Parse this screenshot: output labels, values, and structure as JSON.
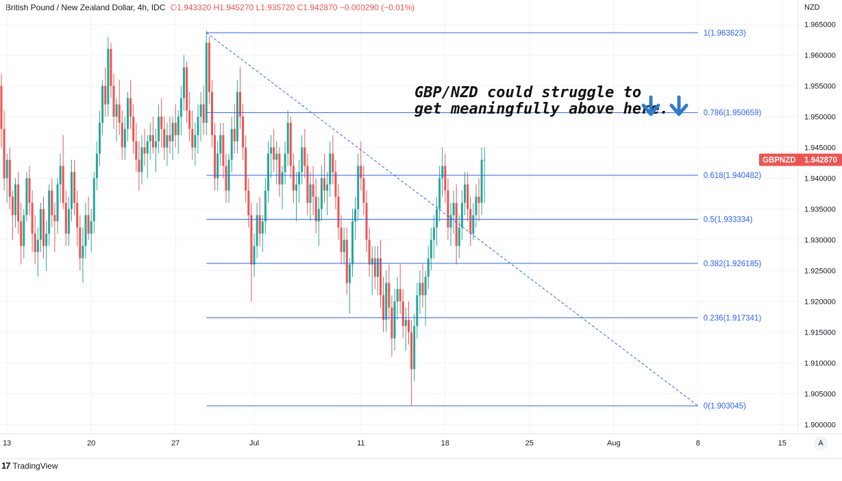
{
  "header": {
    "title": "British Pound / New Zealand Dollar, 4h, IDC",
    "open": "O1.943320",
    "high": "H1.945270",
    "low": "L1.935720",
    "close": "C1.942870",
    "change": "−0.000290 (−0.01%)"
  },
  "currency": "NZD",
  "price_tag": {
    "symbol": "GBPNZD",
    "value": "1.942870"
  },
  "annotation": {
    "line1": "GBP/NZD could struggle to",
    "line2": "get meaningfully above here."
  },
  "branding": {
    "name": "TradingView",
    "auto_button": "A"
  },
  "colors": {
    "up": "#26a69a",
    "down": "#ef5350",
    "fib": "#2962ff",
    "arrow": "#2e7bcf",
    "tag": "#ef5350"
  },
  "icons": [
    "tradingview-logo-icon",
    "arrow-down-icon"
  ],
  "chart_data": {
    "type": "candlestick",
    "symbol": "GBPNZD",
    "timeframe": "4h",
    "ylim": [
      1.8985,
      1.9685
    ],
    "y_ticks": [
      "1.965000",
      "1.960000",
      "1.955000",
      "1.950000",
      "1.945000",
      "1.940000",
      "1.935000",
      "1.930000",
      "1.925000",
      "1.920000",
      "1.915000",
      "1.910000",
      "1.905000",
      "1.900000"
    ],
    "y_tick_values": [
      1.965,
      1.96,
      1.955,
      1.95,
      1.945,
      1.94,
      1.935,
      1.93,
      1.925,
      1.92,
      1.915,
      1.91,
      1.905,
      1.9
    ],
    "x_ticks": [
      "13",
      "20",
      "27",
      "Jul",
      "11",
      "18",
      "25",
      "Aug",
      "8",
      "15"
    ],
    "x_tick_index": [
      2,
      32,
      62,
      90,
      128,
      158,
      188,
      218,
      248,
      278
    ],
    "fib_levels": [
      {
        "label": "1(1.963623)",
        "value": 1.963623
      },
      {
        "label": "0.786(1.950659)",
        "value": 1.950659
      },
      {
        "label": "0.618(1.940482)",
        "value": 1.940482
      },
      {
        "label": "0.5(1.933334)",
        "value": 1.933334
      },
      {
        "label": "0.382(1.926185)",
        "value": 1.926185
      },
      {
        "label": "0.236(1.917341)",
        "value": 1.917341
      },
      {
        "label": "0(1.903045)",
        "value": 1.903045
      }
    ],
    "fib_range_index": [
      73,
      248
    ],
    "trend_line": {
      "start_index": 73,
      "start_value": 1.963623,
      "end_index": 248,
      "end_value": 1.903045
    },
    "candles": [
      [
        1.955,
        1.957,
        1.945,
        1.948
      ],
      [
        1.948,
        1.951,
        1.938,
        1.94
      ],
      [
        1.94,
        1.944,
        1.936,
        1.943
      ],
      [
        1.943,
        1.945,
        1.935,
        1.937
      ],
      [
        1.937,
        1.938,
        1.93,
        1.934
      ],
      [
        1.934,
        1.94,
        1.932,
        1.939
      ],
      [
        1.939,
        1.941,
        1.931,
        1.933
      ],
      [
        1.933,
        1.936,
        1.926,
        1.929
      ],
      [
        1.929,
        1.935,
        1.927,
        1.934
      ],
      [
        1.934,
        1.941,
        1.933,
        1.94
      ],
      [
        1.94,
        1.942,
        1.934,
        1.936
      ],
      [
        1.936,
        1.938,
        1.928,
        1.931
      ],
      [
        1.931,
        1.934,
        1.926,
        1.928
      ],
      [
        1.928,
        1.932,
        1.924,
        1.93
      ],
      [
        1.93,
        1.936,
        1.928,
        1.935
      ],
      [
        1.935,
        1.937,
        1.927,
        1.929
      ],
      [
        1.929,
        1.933,
        1.925,
        1.931
      ],
      [
        1.931,
        1.939,
        1.929,
        1.938
      ],
      [
        1.938,
        1.94,
        1.932,
        1.934
      ],
      [
        1.934,
        1.936,
        1.928,
        1.933
      ],
      [
        1.933,
        1.94,
        1.931,
        1.939
      ],
      [
        1.939,
        1.944,
        1.936,
        1.942
      ],
      [
        1.942,
        1.947,
        1.935,
        1.936
      ],
      [
        1.936,
        1.938,
        1.929,
        1.931
      ],
      [
        1.931,
        1.937,
        1.929,
        1.935
      ],
      [
        1.935,
        1.943,
        1.933,
        1.941
      ],
      [
        1.941,
        1.943,
        1.934,
        1.936
      ],
      [
        1.936,
        1.938,
        1.929,
        1.932
      ],
      [
        1.932,
        1.934,
        1.925,
        1.927
      ],
      [
        1.927,
        1.932,
        1.923,
        1.929
      ],
      [
        1.929,
        1.936,
        1.927,
        1.934
      ],
      [
        1.934,
        1.937,
        1.93,
        1.931
      ],
      [
        1.931,
        1.935,
        1.928,
        1.933
      ],
      [
        1.933,
        1.941,
        1.931,
        1.94
      ],
      [
        1.94,
        1.946,
        1.938,
        1.944
      ],
      [
        1.944,
        1.951,
        1.942,
        1.949
      ],
      [
        1.949,
        1.956,
        1.947,
        1.955
      ],
      [
        1.955,
        1.958,
        1.95,
        1.952
      ],
      [
        1.952,
        1.963,
        1.95,
        1.961
      ],
      [
        1.961,
        1.962,
        1.953,
        1.955
      ],
      [
        1.955,
        1.957,
        1.948,
        1.95
      ],
      [
        1.95,
        1.953,
        1.946,
        1.952
      ],
      [
        1.952,
        1.956,
        1.947,
        1.949
      ],
      [
        1.949,
        1.951,
        1.943,
        1.945
      ],
      [
        1.945,
        1.95,
        1.943,
        1.948
      ],
      [
        1.948,
        1.954,
        1.946,
        1.953
      ],
      [
        1.953,
        1.956,
        1.948,
        1.95
      ],
      [
        1.95,
        1.952,
        1.944,
        1.946
      ],
      [
        1.946,
        1.949,
        1.941,
        1.943
      ],
      [
        1.943,
        1.946,
        1.938,
        1.941
      ],
      [
        1.941,
        1.947,
        1.939,
        1.945
      ],
      [
        1.945,
        1.948,
        1.942,
        1.944
      ],
      [
        1.944,
        1.947,
        1.94,
        1.946
      ],
      [
        1.946,
        1.949,
        1.943,
        1.947
      ],
      [
        1.947,
        1.95,
        1.944,
        1.945
      ],
      [
        1.945,
        1.948,
        1.941,
        1.946
      ],
      [
        1.946,
        1.952,
        1.944,
        1.95
      ],
      [
        1.95,
        1.953,
        1.945,
        1.948
      ],
      [
        1.948,
        1.95,
        1.943,
        1.945
      ],
      [
        1.945,
        1.949,
        1.942,
        1.947
      ],
      [
        1.947,
        1.95,
        1.944,
        1.946
      ],
      [
        1.946,
        1.95,
        1.943,
        1.949
      ],
      [
        1.949,
        1.952,
        1.945,
        1.947
      ],
      [
        1.947,
        1.951,
        1.944,
        1.95
      ],
      [
        1.95,
        1.955,
        1.947,
        1.953
      ],
      [
        1.953,
        1.96,
        1.951,
        1.958
      ],
      [
        1.958,
        1.959,
        1.949,
        1.951
      ],
      [
        1.951,
        1.954,
        1.946,
        1.948
      ],
      [
        1.948,
        1.951,
        1.943,
        1.945
      ],
      [
        1.945,
        1.949,
        1.942,
        1.947
      ],
      [
        1.947,
        1.952,
        1.944,
        1.95
      ],
      [
        1.95,
        1.954,
        1.946,
        1.952
      ],
      [
        1.952,
        1.955,
        1.947,
        1.949
      ],
      [
        1.949,
        1.964,
        1.947,
        1.962
      ],
      [
        1.962,
        1.963,
        1.952,
        1.954
      ],
      [
        1.954,
        1.956,
        1.945,
        1.947
      ],
      [
        1.947,
        1.949,
        1.938,
        1.94
      ],
      [
        1.94,
        1.946,
        1.938,
        1.944
      ],
      [
        1.944,
        1.949,
        1.942,
        1.947
      ],
      [
        1.947,
        1.949,
        1.94,
        1.942
      ],
      [
        1.942,
        1.944,
        1.936,
        1.938
      ],
      [
        1.938,
        1.944,
        1.936,
        1.943
      ],
      [
        1.943,
        1.95,
        1.941,
        1.948
      ],
      [
        1.948,
        1.952,
        1.944,
        1.946
      ],
      [
        1.946,
        1.956,
        1.944,
        1.954
      ],
      [
        1.954,
        1.958,
        1.948,
        1.95
      ],
      [
        1.95,
        1.952,
        1.943,
        1.945
      ],
      [
        1.945,
        1.947,
        1.936,
        1.938
      ],
      [
        1.938,
        1.94,
        1.932,
        1.934
      ],
      [
        1.934,
        1.936,
        1.92,
        1.926
      ],
      [
        1.926,
        1.931,
        1.924,
        1.929
      ],
      [
        1.929,
        1.936,
        1.927,
        1.934
      ],
      [
        1.934,
        1.937,
        1.929,
        1.931
      ],
      [
        1.931,
        1.934,
        1.928,
        1.933
      ],
      [
        1.933,
        1.94,
        1.931,
        1.938
      ],
      [
        1.938,
        1.946,
        1.936,
        1.944
      ],
      [
        1.944,
        1.947,
        1.94,
        1.945
      ],
      [
        1.945,
        1.948,
        1.941,
        1.943
      ],
      [
        1.943,
        1.946,
        1.939,
        1.944
      ],
      [
        1.944,
        1.945,
        1.937,
        1.939
      ],
      [
        1.939,
        1.942,
        1.935,
        1.941
      ],
      [
        1.941,
        1.946,
        1.939,
        1.944
      ],
      [
        1.944,
        1.951,
        1.942,
        1.949
      ],
      [
        1.949,
        1.95,
        1.94,
        1.942
      ],
      [
        1.942,
        1.944,
        1.936,
        1.938
      ],
      [
        1.938,
        1.941,
        1.933,
        1.939
      ],
      [
        1.939,
        1.943,
        1.936,
        1.941
      ],
      [
        1.941,
        1.947,
        1.939,
        1.945
      ],
      [
        1.945,
        1.948,
        1.94,
        1.942
      ],
      [
        1.942,
        1.944,
        1.934,
        1.936
      ],
      [
        1.936,
        1.941,
        1.933,
        1.939
      ],
      [
        1.939,
        1.942,
        1.934,
        1.937
      ],
      [
        1.937,
        1.94,
        1.931,
        1.933
      ],
      [
        1.933,
        1.937,
        1.929,
        1.935
      ],
      [
        1.935,
        1.942,
        1.933,
        1.94
      ],
      [
        1.94,
        1.944,
        1.936,
        1.938
      ],
      [
        1.938,
        1.941,
        1.934,
        1.939
      ],
      [
        1.939,
        1.946,
        1.937,
        1.944
      ],
      [
        1.944,
        1.947,
        1.939,
        1.941
      ],
      [
        1.941,
        1.943,
        1.935,
        1.937
      ],
      [
        1.937,
        1.939,
        1.93,
        1.932
      ],
      [
        1.932,
        1.934,
        1.926,
        1.928
      ],
      [
        1.928,
        1.932,
        1.926,
        1.93
      ],
      [
        1.93,
        1.932,
        1.921,
        1.923
      ],
      [
        1.923,
        1.927,
        1.918,
        1.926
      ],
      [
        1.926,
        1.935,
        1.924,
        1.933
      ],
      [
        1.933,
        1.937,
        1.93,
        1.935
      ],
      [
        1.935,
        1.944,
        1.933,
        1.942
      ],
      [
        1.942,
        1.946,
        1.938,
        1.94
      ],
      [
        1.94,
        1.942,
        1.934,
        1.936
      ],
      [
        1.936,
        1.938,
        1.928,
        1.93
      ],
      [
        1.93,
        1.932,
        1.924,
        1.926
      ],
      [
        1.926,
        1.929,
        1.921,
        1.927
      ],
      [
        1.927,
        1.929,
        1.922,
        1.924
      ],
      [
        1.924,
        1.929,
        1.921,
        1.927
      ],
      [
        1.927,
        1.93,
        1.919,
        1.921
      ],
      [
        1.921,
        1.924,
        1.915,
        1.917
      ],
      [
        1.917,
        1.925,
        1.915,
        1.923
      ],
      [
        1.923,
        1.926,
        1.917,
        1.919
      ],
      [
        1.919,
        1.921,
        1.911,
        1.914
      ],
      [
        1.914,
        1.922,
        1.912,
        1.92
      ],
      [
        1.92,
        1.924,
        1.917,
        1.922
      ],
      [
        1.922,
        1.926,
        1.918,
        1.92
      ],
      [
        1.92,
        1.922,
        1.914,
        1.916
      ],
      [
        1.916,
        1.919,
        1.912,
        1.917
      ],
      [
        1.917,
        1.92,
        1.913,
        1.915
      ],
      [
        1.915,
        1.917,
        1.903,
        1.909
      ],
      [
        1.909,
        1.918,
        1.907,
        1.916
      ],
      [
        1.916,
        1.923,
        1.914,
        1.921
      ],
      [
        1.921,
        1.925,
        1.918,
        1.923
      ],
      [
        1.923,
        1.926,
        1.919,
        1.921
      ],
      [
        1.921,
        1.925,
        1.916,
        1.924
      ],
      [
        1.924,
        1.929,
        1.922,
        1.927
      ],
      [
        1.927,
        1.932,
        1.925,
        1.93
      ],
      [
        1.93,
        1.934,
        1.927,
        1.932
      ],
      [
        1.932,
        1.937,
        1.929,
        1.935
      ],
      [
        1.935,
        1.942,
        1.933,
        1.94
      ],
      [
        1.94,
        1.945,
        1.937,
        1.942
      ],
      [
        1.942,
        1.944,
        1.936,
        1.938
      ],
      [
        1.938,
        1.94,
        1.93,
        1.932
      ],
      [
        1.932,
        1.936,
        1.929,
        1.934
      ],
      [
        1.934,
        1.938,
        1.931,
        1.936
      ],
      [
        1.936,
        1.939,
        1.926,
        1.929
      ],
      [
        1.929,
        1.934,
        1.927,
        1.932
      ],
      [
        1.932,
        1.938,
        1.93,
        1.936
      ],
      [
        1.936,
        1.941,
        1.934,
        1.939
      ],
      [
        1.939,
        1.941,
        1.933,
        1.935
      ],
      [
        1.935,
        1.937,
        1.929,
        1.931
      ],
      [
        1.931,
        1.936,
        1.93,
        1.934
      ],
      [
        1.934,
        1.939,
        1.932,
        1.937
      ],
      [
        1.937,
        1.94,
        1.933,
        1.936
      ],
      [
        1.936,
        1.945,
        1.934,
        1.943
      ],
      [
        1.943,
        1.945,
        1.936,
        1.943
      ]
    ]
  }
}
